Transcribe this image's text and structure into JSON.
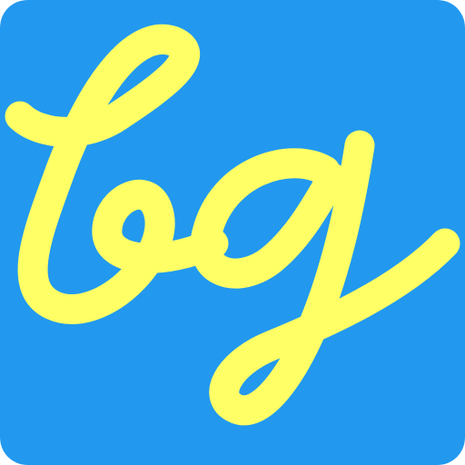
{
  "logo": {
    "text": "bg",
    "background_color": "#2299EE",
    "letter_color": "#FFFF66",
    "icon": "bg-monogram-logo"
  }
}
